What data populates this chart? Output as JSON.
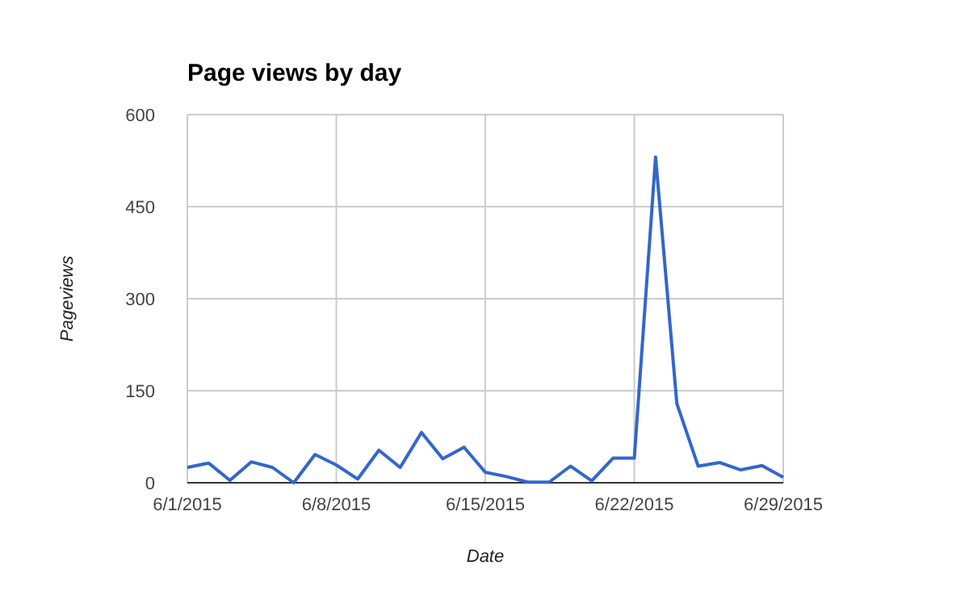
{
  "chart_data": {
    "type": "line",
    "title": "Page views by day",
    "xlabel": "Date",
    "ylabel": "Pageviews",
    "x": [
      "2015-06-01",
      "2015-06-02",
      "2015-06-03",
      "2015-06-04",
      "2015-06-05",
      "2015-06-06",
      "2015-06-07",
      "2015-06-08",
      "2015-06-09",
      "2015-06-10",
      "2015-06-11",
      "2015-06-12",
      "2015-06-13",
      "2015-06-14",
      "2015-06-15",
      "2015-06-16",
      "2015-06-17",
      "2015-06-18",
      "2015-06-19",
      "2015-06-20",
      "2015-06-21",
      "2015-06-22",
      "2015-06-23",
      "2015-06-24",
      "2015-06-25",
      "2015-06-26",
      "2015-06-27",
      "2015-06-28",
      "2015-06-29"
    ],
    "series": [
      {
        "color": "#3366cc",
        "values": [
          25,
          32,
          4,
          34,
          25,
          0,
          46,
          29,
          6,
          53,
          25,
          82,
          39,
          58,
          17,
          10,
          1,
          1,
          27,
          3,
          40,
          40,
          531,
          129,
          27,
          33,
          21,
          28,
          9
        ]
      }
    ],
    "xlim": [
      "2015-06-01",
      "2015-06-29"
    ],
    "xticks": [
      {
        "value": "2015-06-01",
        "label": "6/1/2015"
      },
      {
        "value": "2015-06-08",
        "label": "6/8/2015"
      },
      {
        "value": "2015-06-15",
        "label": "6/15/2015"
      },
      {
        "value": "2015-06-22",
        "label": "6/22/2015"
      },
      {
        "value": "2015-06-29",
        "label": "6/29/2015"
      }
    ],
    "ylim": [
      0,
      600
    ],
    "yticks": [
      0,
      150,
      300,
      450,
      600
    ],
    "grid": true,
    "line_style": "solid",
    "marker": "none"
  }
}
